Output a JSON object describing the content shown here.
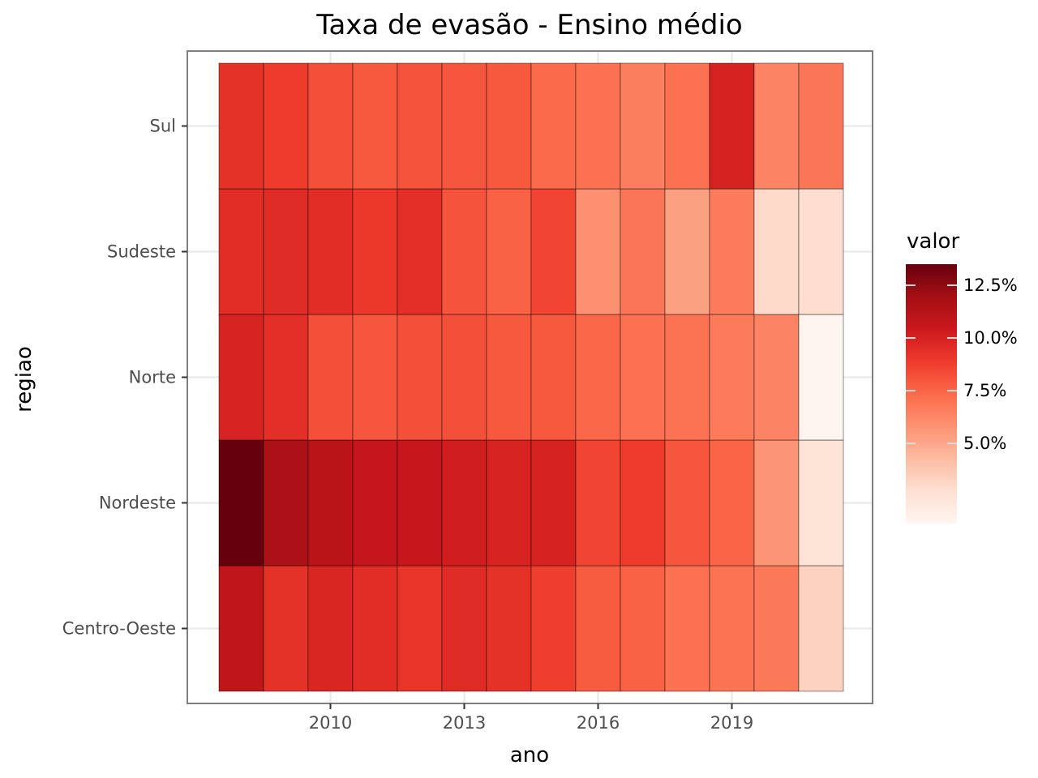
{
  "chart_data": {
    "type": "heatmap",
    "title": "Taxa de evasão - Ensino médio",
    "xlabel": "ano",
    "ylabel": "regiao",
    "x": [
      2008,
      2009,
      2010,
      2011,
      2012,
      2013,
      2014,
      2015,
      2016,
      2017,
      2018,
      2019,
      2020,
      2021
    ],
    "x_ticks": [
      2010,
      2013,
      2016,
      2019
    ],
    "x_tick_labels": [
      "2010",
      "2013",
      "2016",
      "2019"
    ],
    "y_categories": [
      "Centro-Oeste",
      "Nordeste",
      "Norte",
      "Sudeste",
      "Sul"
    ],
    "values": {
      "Sul": [
        9.3,
        8.9,
        8.2,
        7.9,
        8.1,
        8.0,
        7.9,
        7.3,
        7.1,
        6.6,
        7.1,
        10.0,
        6.4,
        6.9
      ],
      "Sudeste": [
        9.5,
        9.6,
        9.5,
        9.0,
        9.4,
        8.1,
        7.6,
        8.6,
        5.9,
        6.9,
        5.3,
        6.7,
        3.0,
        2.8
      ],
      "Norte": [
        9.9,
        9.4,
        8.2,
        8.0,
        8.2,
        8.2,
        7.9,
        7.9,
        7.4,
        7.1,
        7.0,
        6.7,
        6.4,
        1.2
      ],
      "Nordeste": [
        13.5,
        11.7,
        11.1,
        10.7,
        10.6,
        10.2,
        9.9,
        10.0,
        8.6,
        8.9,
        8.0,
        7.5,
        5.7,
        2.5
      ],
      "Centro-Oeste": [
        10.9,
        9.3,
        9.8,
        9.5,
        9.2,
        9.6,
        9.3,
        8.8,
        7.8,
        7.6,
        7.1,
        7.0,
        6.8,
        3.3
      ]
    },
    "color_scale": {
      "name": "valor",
      "ticks": [
        5.0,
        7.5,
        10.0,
        12.5
      ],
      "tick_labels": [
        "5.0%",
        "7.5%",
        "10.0%",
        "12.5%"
      ],
      "range": [
        1.2,
        13.5
      ],
      "stops": [
        "#fff5f0",
        "#fee0d2",
        "#fcbba1",
        "#fc9272",
        "#fb6a4a",
        "#ef3b2c",
        "#cb181d",
        "#a50f15",
        "#67000d"
      ]
    },
    "grid": true,
    "legend_position": "right"
  }
}
